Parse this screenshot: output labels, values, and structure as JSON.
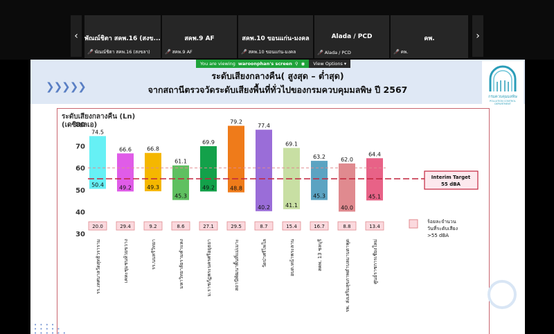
{
  "meeting": {
    "prev_icon": "chevron-left-icon",
    "next_icon": "chevron-right-icon",
    "participants": [
      {
        "title": "พัณณ์ชิตา สคพ.16 (สงข...",
        "name": "พัณณ์ชิตา สคพ.16 (สงขลา)"
      },
      {
        "title": "สคพ.9 AF",
        "name": "สคพ.9 AF"
      },
      {
        "title": "สคพ.10 ขอนแก่น-มงคล",
        "name": "สคพ.10 ขอนแก่น-มงคล"
      },
      {
        "title": "Alada / PCD",
        "name": "Alada / PCD"
      },
      {
        "title": "คพ.",
        "name": "คพ."
      }
    ],
    "share_banner": {
      "prefix": "You are viewing",
      "user": "waroonphan's screen",
      "view_options": "View Options"
    }
  },
  "slide": {
    "title_line1": "ระดับเสียงกลางคืน( สูงสุด – ต่ำสุด)",
    "title_line2": "จากสถานีตรวจวัดระดับเสียงพื้นที่ทั่วไปของกรมควบคุมมลพิษ ปี 2567",
    "logo_text": "กรมควบคุมมลพิษ",
    "logo_subtext": "POLLUTION CONTROL DEPARTMENT"
  },
  "chart_data": {
    "type": "bar",
    "ylabel_line1": "ระดับเสียงกลางคืน (Ln)",
    "ylabel_line2": "(เดซิเบลเอ)",
    "ylim": [
      30,
      80
    ],
    "yticks": [
      30,
      40,
      50,
      60,
      70,
      80
    ],
    "categories": [
      "รร.เทศบาลวัดสุทธิวราราม",
      "เคหะชุมชนห้วยขวาง",
      "รร.นนทรีวิทยา",
      "มหาวิทยาลัยรามคำแหง",
      "ม.ราชภัฏพระนครศรีอยุธยา",
      "สถานีพัฒนาพื้นที่แม่เมาะ",
      "วัดป่าศรีไพโล",
      "อบต.หน้าพระลาน",
      "สคพ. 13 ชลบุรี",
      "รพ. ส่งเสริมสุขภาพตำบลมาบตาพุด",
      "ศูนย์ราชการเชียงใหม่"
    ],
    "max": [
      74.5,
      66.6,
      66.8,
      61.1,
      69.9,
      79.2,
      77.4,
      69.1,
      63.2,
      62.0,
      64.4
    ],
    "min": [
      50.4,
      49.2,
      49.3,
      45.3,
      49.2,
      48.8,
      40.2,
      41.1,
      45.3,
      40.0,
      45.1
    ],
    "colors": [
      "#66f0f5",
      "#e05ce8",
      "#f5b700",
      "#5fc060",
      "#13a14a",
      "#ef7b1a",
      "#9a6dd8",
      "#c8dfa3",
      "#5ba3c2",
      "#e08a8f",
      "#e86287"
    ],
    "pct_over_55": [
      "20.0",
      "29.4",
      "9.2",
      "8.6",
      "27.1",
      "29.5",
      "8.7",
      "15.4",
      "16.7",
      "8.8",
      "13.4"
    ],
    "reference_lines": [
      {
        "value": 55,
        "style": "dashed",
        "label_line1": "Interim Target",
        "label_line2": "55 dBA"
      },
      {
        "value": 60,
        "style": "dashed-light"
      }
    ],
    "legend_line1": "ร้อยละจำนวน",
    "legend_line2": "วันที่ระดับเสียง",
    "legend_line3": ">55 dBA"
  }
}
